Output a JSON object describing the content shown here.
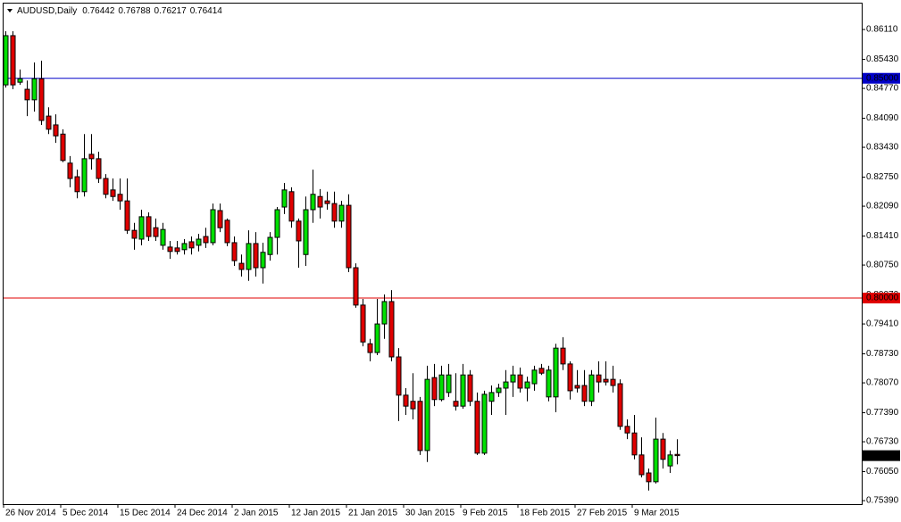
{
  "chart_data": {
    "type": "candlestick",
    "title": "AUDUSD,Daily",
    "up_color": "#00e000",
    "down_color": "#e00000",
    "wick_color": "#000000",
    "ylim": [
      0.7531,
      0.867
    ],
    "yticks": [
      {
        "value": 0.8611,
        "label": "0.86110"
      },
      {
        "value": 0.8543,
        "label": "0.85430"
      },
      {
        "value": 0.8477,
        "label": "0.84770"
      },
      {
        "value": 0.8409,
        "label": "0.84090"
      },
      {
        "value": 0.8343,
        "label": "0.83430"
      },
      {
        "value": 0.8275,
        "label": "0.82750"
      },
      {
        "value": 0.8209,
        "label": "0.82090"
      },
      {
        "value": 0.8141,
        "label": "0.81410"
      },
      {
        "value": 0.8075,
        "label": "0.80750"
      },
      {
        "value": 0.8007,
        "label": "0.80070"
      },
      {
        "value": 0.7941,
        "label": "0.79410"
      },
      {
        "value": 0.7873,
        "label": "0.78730"
      },
      {
        "value": 0.7807,
        "label": "0.78070"
      },
      {
        "value": 0.7739,
        "label": "0.77390"
      },
      {
        "value": 0.7673,
        "label": "0.76730"
      },
      {
        "value": 0.7605,
        "label": "0.76050"
      },
      {
        "value": 0.7539,
        "label": "0.75390"
      }
    ],
    "hlines": [
      {
        "value": 0.85,
        "label": "0.85000",
        "color": "#0000c8"
      },
      {
        "value": 0.8,
        "label": "0.80000",
        "color": "#e00000"
      }
    ],
    "categories": [
      "26 Nov 2014",
      null,
      null,
      null,
      null,
      null,
      null,
      null,
      "5 Dec 2014",
      null,
      null,
      null,
      null,
      null,
      null,
      null,
      "15 Dec 2014",
      null,
      null,
      null,
      null,
      null,
      null,
      null,
      "24 Dec 2014",
      null,
      null,
      null,
      null,
      null,
      null,
      null,
      "2 Jan 2015",
      null,
      null,
      null,
      null,
      null,
      null,
      null,
      "12 Jan 2015",
      null,
      null,
      null,
      null,
      null,
      null,
      null,
      "21 Jan 2015",
      null,
      null,
      null,
      null,
      null,
      null,
      null,
      "30 Jan 2015",
      null,
      null,
      null,
      null,
      null,
      null,
      null,
      "9 Feb 2015",
      null,
      null,
      null,
      null,
      null,
      null,
      null,
      "18 Feb 2015",
      null,
      null,
      null,
      null,
      null,
      null,
      null,
      "27 Feb 2015",
      null,
      null,
      null,
      null,
      null,
      null,
      null,
      "9 Mar 2015",
      null,
      null,
      null,
      null,
      null,
      null
    ],
    "open": [
      0.8485,
      0.8597,
      0.8491,
      0.8475,
      0.8451,
      0.8499,
      0.8414,
      0.8394,
      0.8373,
      0.8307,
      0.8276,
      0.8242,
      0.8327,
      0.8317,
      0.8272,
      0.8246,
      0.8236,
      0.8221,
      0.8154,
      0.8134,
      0.8185,
      0.816,
      0.812,
      0.8116,
      0.8114,
      0.811,
      0.8128,
      0.812,
      0.814,
      0.8126,
      0.8199,
      0.8177,
      0.8126,
      0.8079,
      0.8065,
      0.8124,
      0.8069,
      0.8099,
      0.8138,
      0.8207,
      0.8242,
      0.8175,
      0.8099,
      0.8201,
      0.8231,
      0.8221,
      0.8215,
      0.8175,
      0.8211,
      0.8069,
      0.7984,
      0.7896,
      0.7876,
      0.7941,
      0.7992,
      0.7866,
      0.7779,
      0.7765,
      0.7765,
      0.7653,
      0.7819,
      0.7769,
      0.7785,
      0.7765,
      0.7754,
      0.7825,
      0.7765,
      0.7647,
      0.7765,
      0.7785,
      0.7795,
      0.7809,
      0.7825,
      0.7795,
      0.7805,
      0.784,
      0.7775,
      0.7775,
      0.7886,
      0.785,
      0.7801,
      0.7801,
      0.7765,
      0.7825,
      0.7815,
      0.7815,
      0.7805,
      0.7708,
      0.7693,
      0.7643,
      0.7602,
      0.7582,
      0.7679,
      0.7618,
      0.76442
    ],
    "high": [
      0.8607,
      0.8607,
      0.852,
      0.8495,
      0.8536,
      0.854,
      0.8434,
      0.8418,
      0.8384,
      0.8323,
      0.8292,
      0.8373,
      0.8373,
      0.8333,
      0.8282,
      0.8272,
      0.8272,
      0.8272,
      0.8171,
      0.8201,
      0.8195,
      0.8181,
      0.8171,
      0.813,
      0.813,
      0.8134,
      0.814,
      0.8146,
      0.816,
      0.8215,
      0.8215,
      0.8181,
      0.814,
      0.8099,
      0.8154,
      0.815,
      0.8126,
      0.815,
      0.8207,
      0.8262,
      0.8252,
      0.8181,
      0.8231,
      0.8292,
      0.8248,
      0.8242,
      0.8242,
      0.8221,
      0.8236,
      0.8079,
      0.7998,
      0.7907,
      0.7998,
      0.8008,
      0.8018,
      0.7886,
      0.7795,
      0.7829,
      0.7775,
      0.7846,
      0.785,
      0.7846,
      0.785,
      0.7829,
      0.785,
      0.7836,
      0.7785,
      0.7789,
      0.7801,
      0.7805,
      0.7836,
      0.7846,
      0.7842,
      0.7821,
      0.7846,
      0.785,
      0.7846,
      0.7896,
      0.7911,
      0.7856,
      0.7836,
      0.7836,
      0.7836,
      0.7856,
      0.7856,
      0.7846,
      0.7815,
      0.7724,
      0.7734,
      0.7683,
      0.7612,
      0.7728,
      0.7693,
      0.7653,
      0.76788
    ],
    "low": [
      0.8479,
      0.8475,
      0.8485,
      0.8414,
      0.8424,
      0.8394,
      0.8373,
      0.8353,
      0.8309,
      0.8252,
      0.8227,
      0.8231,
      0.8292,
      0.8262,
      0.8227,
      0.8221,
      0.8201,
      0.8146,
      0.811,
      0.812,
      0.813,
      0.813,
      0.811,
      0.8089,
      0.8099,
      0.8099,
      0.8099,
      0.8106,
      0.8114,
      0.812,
      0.815,
      0.8118,
      0.8073,
      0.8049,
      0.8039,
      0.8049,
      0.8033,
      0.8085,
      0.8099,
      0.8191,
      0.816,
      0.8069,
      0.8073,
      0.8171,
      0.8181,
      0.8201,
      0.816,
      0.816,
      0.8059,
      0.7978,
      0.789,
      0.7856,
      0.787,
      0.7907,
      0.7856,
      0.772,
      0.7734,
      0.7724,
      0.7643,
      0.7627,
      0.7754,
      0.7765,
      0.7775,
      0.7744,
      0.7748,
      0.7754,
      0.7643,
      0.7643,
      0.7734,
      0.7775,
      0.7734,
      0.7775,
      0.7785,
      0.7765,
      0.7789,
      0.7825,
      0.7765,
      0.774,
      0.7836,
      0.7769,
      0.7785,
      0.7754,
      0.7754,
      0.7785,
      0.7801,
      0.7785,
      0.77,
      0.7679,
      0.7633,
      0.7592,
      0.7562,
      0.7578,
      0.7612,
      0.7602,
      0.76217
    ],
    "close": [
      0.8597,
      0.8485,
      0.8499,
      0.8451,
      0.8499,
      0.8404,
      0.8384,
      0.8369,
      0.8313,
      0.8272,
      0.8242,
      0.8317,
      0.8317,
      0.8272,
      0.8236,
      0.8231,
      0.8221,
      0.8154,
      0.8136,
      0.8185,
      0.814,
      0.814,
      0.8156,
      0.8106,
      0.8106,
      0.8124,
      0.8114,
      0.8134,
      0.8126,
      0.8201,
      0.816,
      0.8126,
      0.8085,
      0.8065,
      0.8124,
      0.8069,
      0.8104,
      0.8138,
      0.8201,
      0.8246,
      0.8175,
      0.813,
      0.8201,
      0.8236,
      0.8207,
      0.8215,
      0.8175,
      0.8211,
      0.8069,
      0.7984,
      0.79,
      0.7876,
      0.7941,
      0.7992,
      0.7866,
      0.7779,
      0.7754,
      0.7748,
      0.7653,
      0.7815,
      0.7769,
      0.7825,
      0.7825,
      0.7754,
      0.7825,
      0.7765,
      0.7647,
      0.7781,
      0.7785,
      0.7795,
      0.7809,
      0.7825,
      0.7795,
      0.7809,
      0.7836,
      0.7829,
      0.7836,
      0.7886,
      0.785,
      0.7789,
      0.7795,
      0.7765,
      0.7825,
      0.7809,
      0.7809,
      0.7801,
      0.7708,
      0.7693,
      0.7643,
      0.7598,
      0.7582,
      0.7679,
      0.7633,
      0.7643,
      0.76414
    ]
  }
}
